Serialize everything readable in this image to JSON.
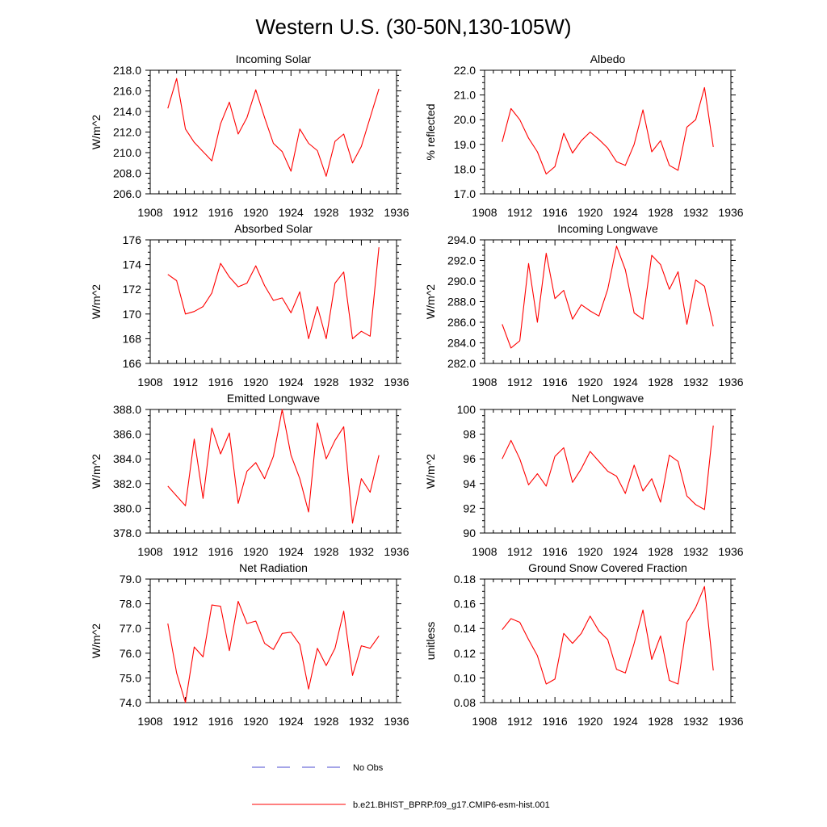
{
  "figure": {
    "title": "Western U.S. (30-50N,130-105W)"
  },
  "chart_data": [
    {
      "type": "line",
      "title": "Incoming Solar",
      "ylabel": "W/m^2",
      "xlabel": "",
      "xlim": [
        1908,
        1936
      ],
      "ylim": [
        206.0,
        218.0
      ],
      "x_ticks": [
        1908,
        1912,
        1916,
        1920,
        1924,
        1928,
        1932,
        1936
      ],
      "y_ticks": [
        "206.0",
        "208.0",
        "210.0",
        "212.0",
        "214.0",
        "216.0",
        "218.0"
      ],
      "series": [
        {
          "name": "b.e21.BHIST_BPRP.f09_g17.CMIP6-esm-hist.001",
          "color": "#ff0000",
          "x": [
            1910,
            1911,
            1912,
            1913,
            1914,
            1915,
            1916,
            1917,
            1918,
            1919,
            1920,
            1921,
            1922,
            1923,
            1924,
            1925,
            1926,
            1927,
            1928,
            1929,
            1930,
            1931,
            1932,
            1933,
            1934
          ],
          "y": [
            214.3,
            217.2,
            212.3,
            211.0,
            210.1,
            209.2,
            212.8,
            214.9,
            211.8,
            213.4,
            216.1,
            213.4,
            210.9,
            210.1,
            208.2,
            212.3,
            210.9,
            210.2,
            207.7,
            211.1,
            211.8,
            209.0,
            210.6,
            213.4,
            216.2
          ]
        }
      ]
    },
    {
      "type": "line",
      "title": "Albedo",
      "ylabel": "% reflected",
      "xlabel": "",
      "xlim": [
        1908,
        1936
      ],
      "ylim": [
        17.0,
        22.0
      ],
      "x_ticks": [
        1908,
        1912,
        1916,
        1920,
        1924,
        1928,
        1932,
        1936
      ],
      "y_ticks": [
        "17.0",
        "18.0",
        "19.0",
        "20.0",
        "21.0",
        "22.0"
      ],
      "series": [
        {
          "name": "b.e21.BHIST_BPRP.f09_g17.CMIP6-esm-hist.001",
          "color": "#ff0000",
          "x": [
            1910,
            1911,
            1912,
            1913,
            1914,
            1915,
            1916,
            1917,
            1918,
            1919,
            1920,
            1921,
            1922,
            1923,
            1924,
            1925,
            1926,
            1927,
            1928,
            1929,
            1930,
            1931,
            1932,
            1933,
            1934
          ],
          "y": [
            19.1,
            20.45,
            20.0,
            19.25,
            18.7,
            17.8,
            18.1,
            19.45,
            18.65,
            19.15,
            19.5,
            19.2,
            18.85,
            18.3,
            18.15,
            19.0,
            20.4,
            18.7,
            19.15,
            18.15,
            17.95,
            19.7,
            20.0,
            21.3,
            18.9
          ]
        }
      ]
    },
    {
      "type": "line",
      "title": "Absorbed Solar",
      "ylabel": "W/m^2",
      "xlabel": "",
      "xlim": [
        1908,
        1936
      ],
      "ylim": [
        166,
        176
      ],
      "x_ticks": [
        1908,
        1912,
        1916,
        1920,
        1924,
        1928,
        1932,
        1936
      ],
      "y_ticks": [
        "166",
        "168",
        "170",
        "172",
        "174",
        "176"
      ],
      "series": [
        {
          "name": "b.e21.BHIST_BPRP.f09_g17.CMIP6-esm-hist.001",
          "color": "#ff0000",
          "x": [
            1910,
            1911,
            1912,
            1913,
            1914,
            1915,
            1916,
            1917,
            1918,
            1919,
            1920,
            1921,
            1922,
            1923,
            1924,
            1925,
            1926,
            1927,
            1928,
            1929,
            1930,
            1931,
            1932,
            1933,
            1934
          ],
          "y": [
            173.2,
            172.7,
            170.0,
            170.2,
            170.6,
            171.7,
            174.1,
            173.0,
            172.2,
            172.5,
            173.9,
            172.3,
            171.1,
            171.3,
            170.1,
            171.8,
            168.0,
            170.6,
            168.0,
            172.5,
            173.4,
            168.0,
            168.6,
            168.2,
            175.4
          ]
        }
      ]
    },
    {
      "type": "line",
      "title": "Incoming Longwave",
      "ylabel": "W/m^2",
      "xlabel": "",
      "xlim": [
        1908,
        1936
      ],
      "ylim": [
        282.0,
        294.0
      ],
      "x_ticks": [
        1908,
        1912,
        1916,
        1920,
        1924,
        1928,
        1932,
        1936
      ],
      "y_ticks": [
        "282.0",
        "284.0",
        "286.0",
        "288.0",
        "290.0",
        "292.0",
        "294.0"
      ],
      "series": [
        {
          "name": "b.e21.BHIST_BPRP.f09_g17.CMIP6-esm-hist.001",
          "color": "#ff0000",
          "x": [
            1910,
            1911,
            1912,
            1913,
            1914,
            1915,
            1916,
            1917,
            1918,
            1919,
            1920,
            1921,
            1922,
            1923,
            1924,
            1925,
            1926,
            1927,
            1928,
            1929,
            1930,
            1931,
            1932,
            1933,
            1934
          ],
          "y": [
            285.8,
            283.5,
            284.2,
            291.7,
            286.0,
            292.7,
            288.3,
            289.1,
            286.3,
            287.7,
            287.1,
            286.6,
            289.2,
            293.4,
            291.1,
            286.9,
            286.3,
            292.5,
            291.6,
            289.2,
            290.9,
            285.8,
            290.1,
            289.5,
            285.6
          ]
        }
      ]
    },
    {
      "type": "line",
      "title": "Emitted Longwave",
      "ylabel": "W/m^2",
      "xlabel": "",
      "xlim": [
        1908,
        1936
      ],
      "ylim": [
        378.0,
        388.0
      ],
      "x_ticks": [
        1908,
        1912,
        1916,
        1920,
        1924,
        1928,
        1932,
        1936
      ],
      "y_ticks": [
        "378.0",
        "380.0",
        "382.0",
        "384.0",
        "386.0",
        "388.0"
      ],
      "series": [
        {
          "name": "b.e21.BHIST_BPRP.f09_g17.CMIP6-esm-hist.001",
          "color": "#ff0000",
          "x": [
            1910,
            1911,
            1912,
            1913,
            1914,
            1915,
            1916,
            1917,
            1918,
            1919,
            1920,
            1921,
            1922,
            1923,
            1924,
            1925,
            1926,
            1927,
            1928,
            1929,
            1930,
            1931,
            1932,
            1933,
            1934
          ],
          "y": [
            381.8,
            381.0,
            380.2,
            385.6,
            380.8,
            386.5,
            384.4,
            386.1,
            380.4,
            383.0,
            383.7,
            382.4,
            384.2,
            388.0,
            384.3,
            382.4,
            379.7,
            386.9,
            384.0,
            385.5,
            386.6,
            378.8,
            382.4,
            381.3,
            384.3
          ]
        }
      ]
    },
    {
      "type": "line",
      "title": "Net Longwave",
      "ylabel": "W/m^2",
      "xlabel": "",
      "xlim": [
        1908,
        1936
      ],
      "ylim": [
        90,
        100
      ],
      "x_ticks": [
        1908,
        1912,
        1916,
        1920,
        1924,
        1928,
        1932,
        1936
      ],
      "y_ticks": [
        "90",
        "92",
        "94",
        "96",
        "98",
        "100"
      ],
      "series": [
        {
          "name": "b.e21.BHIST_BPRP.f09_g17.CMIP6-esm-hist.001",
          "color": "#ff0000",
          "x": [
            1910,
            1911,
            1912,
            1913,
            1914,
            1915,
            1916,
            1917,
            1918,
            1919,
            1920,
            1921,
            1922,
            1923,
            1924,
            1925,
            1926,
            1927,
            1928,
            1929,
            1930,
            1931,
            1932,
            1933,
            1934
          ],
          "y": [
            96.0,
            97.5,
            96.0,
            93.9,
            94.8,
            93.8,
            96.2,
            96.9,
            94.1,
            95.2,
            96.6,
            95.8,
            95.0,
            94.6,
            93.2,
            95.5,
            93.4,
            94.4,
            92.5,
            96.3,
            95.8,
            93.0,
            92.3,
            91.9,
            98.7
          ]
        }
      ]
    },
    {
      "type": "line",
      "title": "Net Radiation",
      "ylabel": "W/m^2",
      "xlabel": "",
      "xlim": [
        1908,
        1936
      ],
      "ylim": [
        74.0,
        79.0
      ],
      "x_ticks": [
        1908,
        1912,
        1916,
        1920,
        1924,
        1928,
        1932,
        1936
      ],
      "y_ticks": [
        "74.0",
        "75.0",
        "76.0",
        "77.0",
        "78.0",
        "79.0"
      ],
      "series": [
        {
          "name": "b.e21.BHIST_BPRP.f09_g17.CMIP6-esm-hist.001",
          "color": "#ff0000",
          "x": [
            1910,
            1911,
            1912,
            1913,
            1914,
            1915,
            1916,
            1917,
            1918,
            1919,
            1920,
            1921,
            1922,
            1923,
            1924,
            1925,
            1926,
            1927,
            1928,
            1929,
            1930,
            1931,
            1932,
            1933,
            1934
          ],
          "y": [
            77.2,
            75.2,
            74.0,
            76.25,
            75.85,
            77.95,
            77.9,
            76.1,
            78.1,
            77.2,
            77.3,
            76.4,
            76.15,
            76.8,
            76.85,
            76.35,
            74.55,
            76.2,
            75.5,
            76.2,
            77.7,
            75.1,
            76.3,
            76.2,
            76.7
          ]
        }
      ]
    },
    {
      "type": "line",
      "title": "Ground Snow Covered Fraction",
      "ylabel": "unitless",
      "xlabel": "",
      "xlim": [
        1908,
        1936
      ],
      "ylim": [
        0.08,
        0.18
      ],
      "x_ticks": [
        1908,
        1912,
        1916,
        1920,
        1924,
        1928,
        1932,
        1936
      ],
      "y_ticks": [
        "0.08",
        "0.10",
        "0.12",
        "0.14",
        "0.16",
        "0.18"
      ],
      "series": [
        {
          "name": "b.e21.BHIST_BPRP.f09_g17.CMIP6-esm-hist.001",
          "color": "#ff0000",
          "x": [
            1910,
            1911,
            1912,
            1913,
            1914,
            1915,
            1916,
            1917,
            1918,
            1919,
            1920,
            1921,
            1922,
            1923,
            1924,
            1925,
            1926,
            1927,
            1928,
            1929,
            1930,
            1931,
            1932,
            1933,
            1934
          ],
          "y": [
            0.139,
            0.148,
            0.145,
            0.131,
            0.118,
            0.095,
            0.099,
            0.136,
            0.128,
            0.136,
            0.15,
            0.138,
            0.131,
            0.107,
            0.104,
            0.128,
            0.155,
            0.115,
            0.134,
            0.098,
            0.095,
            0.145,
            0.157,
            0.174,
            0.106
          ]
        }
      ]
    }
  ],
  "legend": {
    "items": [
      {
        "label": "No Obs",
        "color": "#4b4bd2",
        "style": "dashed"
      },
      {
        "label": "b.e21.BHIST_BPRP.f09_g17.CMIP6-esm-hist.001",
        "color": "#ff0000",
        "style": "solid"
      }
    ]
  }
}
